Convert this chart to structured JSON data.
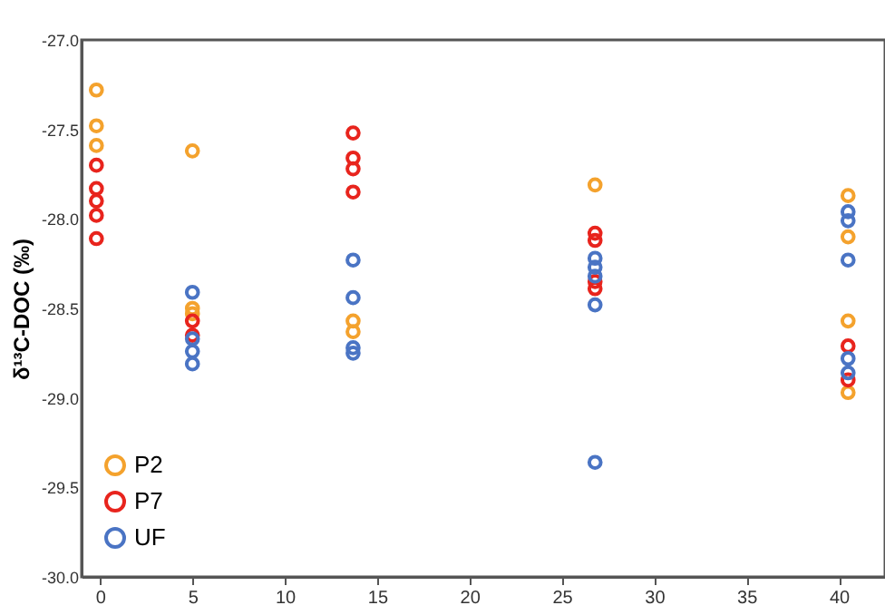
{
  "chart_data": {
    "type": "scatter",
    "ylabel": "δ¹³C-DOC (‰)",
    "xlim": [
      -1,
      42.5
    ],
    "ylim": [
      -30.0,
      -27.0
    ],
    "xticks": [
      0,
      5,
      10,
      15,
      20,
      25,
      30,
      35,
      40
    ],
    "yticks": [
      {
        "value": -30,
        "label": "-30.0"
      },
      -29.5,
      {
        "value": -29,
        "label": "-29.0"
      },
      -28.5,
      {
        "value": -28,
        "label": "-28.0"
      },
      -27.5,
      {
        "value": -27,
        "label": "-27.0"
      }
    ],
    "grid": false,
    "legend": "bottom left",
    "marker": "circle",
    "series": [
      {
        "name": "P2",
        "color": "#f4a22d",
        "x": [
          -0.2,
          -0.2,
          -0.2,
          5,
          5,
          5,
          13.7,
          13.7,
          26.8,
          40.5,
          40.5,
          40.5,
          40.5
        ],
        "values": [
          -27.28,
          -27.48,
          -27.59,
          -27.62,
          -28.5,
          -28.53,
          -28.57,
          -28.63,
          -27.81,
          -27.87,
          -28.1,
          -28.57,
          -28.97
        ]
      },
      {
        "name": "P7",
        "color": "#e8241d",
        "x": [
          -0.2,
          -0.2,
          -0.2,
          -0.2,
          -0.2,
          5,
          5,
          13.7,
          13.7,
          13.7,
          13.7,
          26.8,
          26.8,
          26.8,
          26.8,
          40.5,
          40.5
        ],
        "values": [
          -27.7,
          -27.83,
          -27.9,
          -27.98,
          -28.11,
          -28.57,
          -28.65,
          -27.52,
          -27.66,
          -27.72,
          -27.85,
          -28.08,
          -28.12,
          -28.35,
          -28.39,
          -28.71,
          -28.9
        ]
      },
      {
        "name": "UF",
        "color": "#4a74c4",
        "x": [
          5,
          5,
          5,
          5,
          13.7,
          13.7,
          13.7,
          13.7,
          26.8,
          26.8,
          26.8,
          26.8,
          26.8,
          40.5,
          40.5,
          40.5,
          40.5,
          40.5
        ],
        "values": [
          -28.41,
          -28.67,
          -28.74,
          -28.81,
          -28.23,
          -28.44,
          -28.72,
          -28.75,
          -28.22,
          -28.27,
          -28.32,
          -28.48,
          -29.36,
          -27.96,
          -28.01,
          -28.23,
          -28.78,
          -28.86
        ]
      }
    ]
  }
}
